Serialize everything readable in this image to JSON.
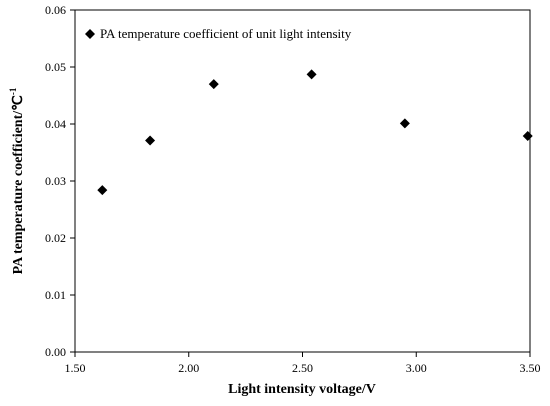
{
  "chart_data": {
    "type": "scatter",
    "title": "",
    "xlabel": "Light intensity voltage/V",
    "ylabel": "PA temperature coefficient/℃",
    "ylabel_superscript": "-1",
    "xlim": [
      1.5,
      3.5
    ],
    "ylim": [
      0,
      0.06
    ],
    "x_ticks": [
      "1.50",
      "2.00",
      "2.50",
      "3.00",
      "3.50"
    ],
    "y_ticks": [
      "0.00",
      "0.01",
      "0.02",
      "0.03",
      "0.04",
      "0.05",
      "0.06"
    ],
    "grid": false,
    "legend_position": "top-left",
    "marker": "diamond",
    "marker_color": "#000000",
    "series": [
      {
        "name": "PA temperature coefficient of unit light intensity",
        "x": [
          1.62,
          1.83,
          2.11,
          2.54,
          2.95,
          3.49
        ],
        "y": [
          0.0284,
          0.0371,
          0.047,
          0.0487,
          0.0401,
          0.0379
        ]
      }
    ]
  }
}
